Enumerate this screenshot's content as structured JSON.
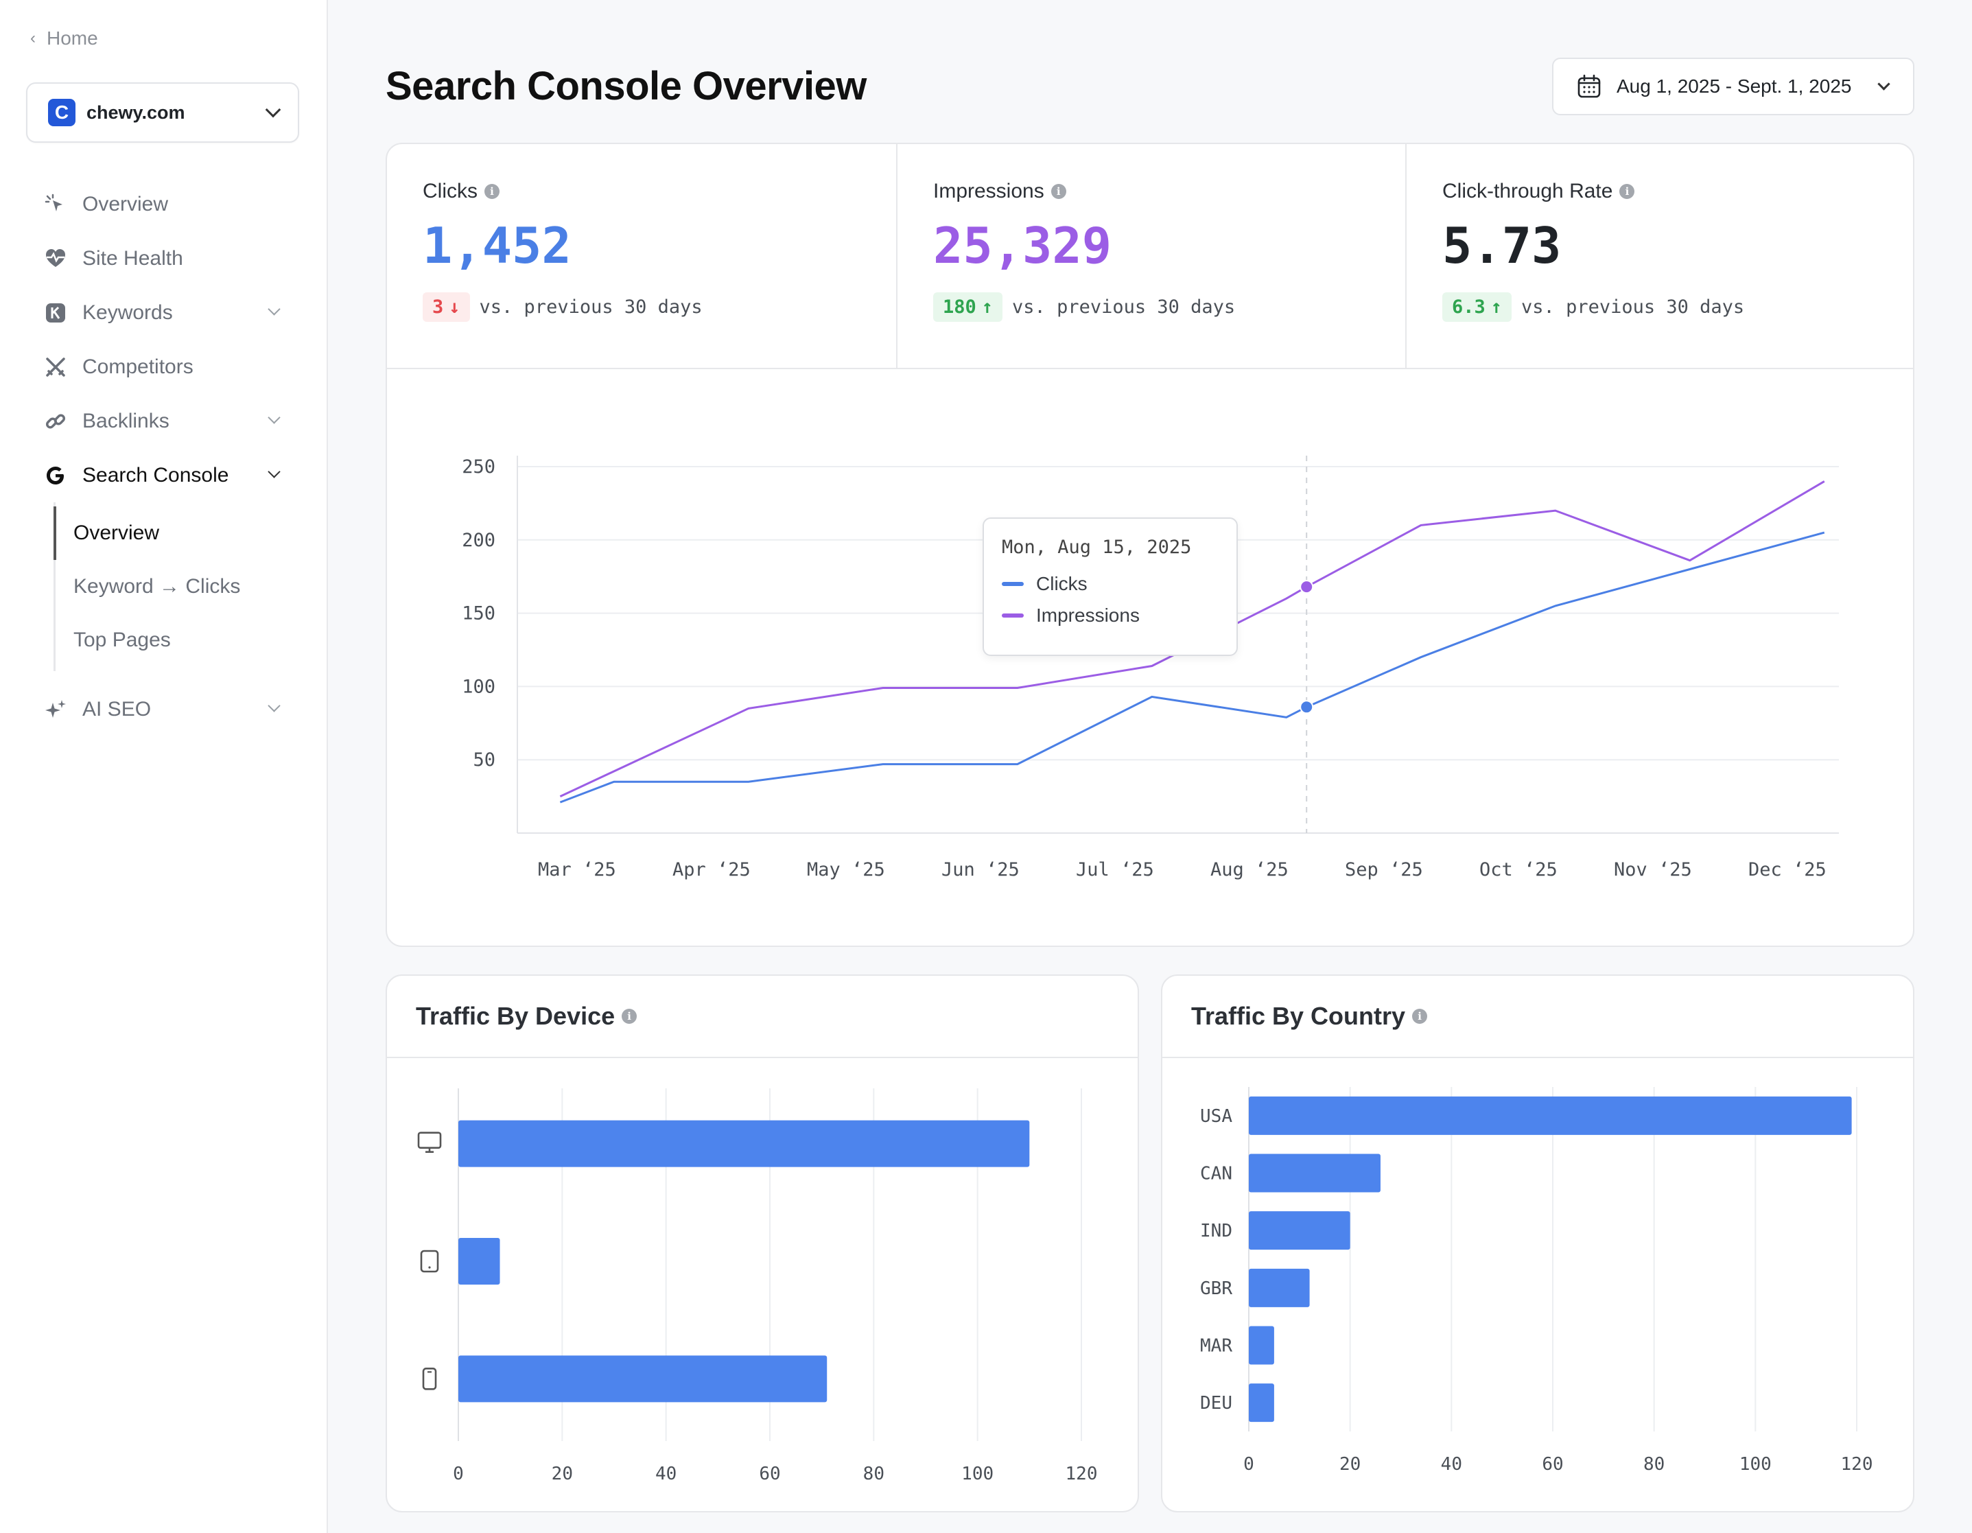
{
  "sidebar": {
    "home_label": "Home",
    "site": {
      "logo_letter": "C",
      "name": "chewy.com"
    },
    "items": [
      {
        "label": "Overview",
        "icon": "pointer-icon",
        "expandable": false
      },
      {
        "label": "Site Health",
        "icon": "heart-pulse-icon",
        "expandable": false
      },
      {
        "label": "Keywords",
        "icon": "k-badge-icon",
        "expandable": true
      },
      {
        "label": "Competitors",
        "icon": "crossed-swords-icon",
        "expandable": false
      },
      {
        "label": "Backlinks",
        "icon": "link-icon",
        "expandable": true
      },
      {
        "label": "Search Console",
        "icon": "google-g-icon",
        "expandable": true,
        "active": true
      },
      {
        "label": "AI SEO",
        "icon": "sparkles-icon",
        "expandable": true
      }
    ],
    "search_console_sub": [
      "Overview",
      "Keyword → Clicks",
      "Top Pages"
    ]
  },
  "header": {
    "title": "Search Console Overview",
    "date_range": "Aug 1, 2025 - Sept. 1, 2025"
  },
  "metrics": [
    {
      "label": "Clicks",
      "value": "1,452",
      "change": "3",
      "direction": "down",
      "suffix": "vs. previous 30 days",
      "color": "#4a7fe5"
    },
    {
      "label": "Impressions",
      "value": "25,329",
      "change": "180",
      "direction": "up",
      "suffix": "vs. previous 30 days",
      "color": "#9b5de5"
    },
    {
      "label": "Click-through Rate",
      "value": "5.73",
      "change": "6.3",
      "direction": "up",
      "suffix": "vs. previous 30 days",
      "color": "#1f2328"
    }
  ],
  "tooltip": {
    "date": "Mon, Aug 15, 2025",
    "series": [
      "Clicks",
      "Impressions"
    ]
  },
  "colors": {
    "clicks": "#4a7fe5",
    "impressions": "#9b5de5",
    "bar": "#4d84ed"
  },
  "chart_data": [
    {
      "type": "line",
      "x": [
        "Mar ‘25",
        "Apr ‘25",
        "May ‘25",
        "Jun ‘25",
        "Jul ‘25",
        "Aug ‘25",
        "Sep ‘25",
        "Oct ‘25",
        "Nov ‘25",
        "Dec ‘25"
      ],
      "x_positions": [
        0,
        1,
        2,
        3,
        4,
        5,
        6,
        7,
        8,
        9
      ],
      "yticks": [
        50,
        100,
        150,
        200,
        250
      ],
      "ylim": [
        0,
        250
      ],
      "grid": true,
      "series": [
        {
          "name": "Clicks",
          "points": [
            [
              -0.1,
              21
            ],
            [
              0.3,
              35
            ],
            [
              1.3,
              35
            ],
            [
              2.3,
              47
            ],
            [
              3.3,
              47
            ],
            [
              4.3,
              93
            ],
            [
              5.3,
              79
            ],
            [
              5.45,
              86
            ],
            [
              6.3,
              120
            ],
            [
              7.3,
              155
            ],
            [
              8.3,
              180
            ],
            [
              9.3,
              205
            ]
          ]
        },
        {
          "name": "Impressions",
          "points": [
            [
              -0.1,
              25
            ],
            [
              1.3,
              85
            ],
            [
              2.3,
              99
            ],
            [
              3.3,
              99
            ],
            [
              4.3,
              114
            ],
            [
              5.3,
              160
            ],
            [
              5.45,
              168
            ],
            [
              6.3,
              210
            ],
            [
              7.3,
              220
            ],
            [
              8.3,
              186
            ],
            [
              9.3,
              240
            ]
          ]
        }
      ],
      "highlight_x": 5.45,
      "highlight_values": {
        "Clicks": 86,
        "Impressions": 168
      }
    },
    {
      "type": "bar",
      "title": "Traffic By Device",
      "orientation": "horizontal",
      "categories": [
        "desktop-icon",
        "tablet-icon",
        "mobile-icon"
      ],
      "values": [
        110,
        8,
        71
      ],
      "xticks": [
        0,
        20,
        40,
        60,
        80,
        100,
        120
      ],
      "xlim": [
        0,
        120
      ]
    },
    {
      "type": "bar",
      "title": "Traffic By Country",
      "orientation": "horizontal",
      "categories": [
        "USA",
        "CAN",
        "IND",
        "GBR",
        "MAR",
        "DEU"
      ],
      "values": [
        119,
        26,
        20,
        12,
        5,
        5
      ],
      "xticks": [
        0,
        20,
        40,
        60,
        80,
        100,
        120
      ],
      "xlim": [
        0,
        120
      ]
    }
  ]
}
